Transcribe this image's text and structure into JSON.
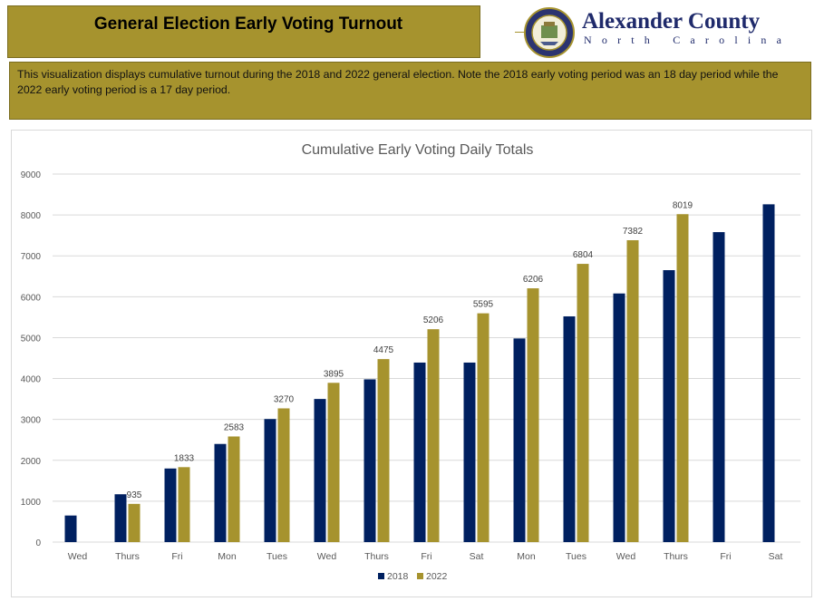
{
  "header": {
    "title": "General Election Early Voting Turnout",
    "county_name": "Alexander County",
    "county_subtitle": "North Carolina",
    "seal_icon": "county-seal-icon"
  },
  "description": "This visualization displays cumulative turnout during the 2018 and 2022 general election. Note the 2018 early voting period was an 18 day period while the 2022 early voting period is a 17 day period.",
  "colors": {
    "accent": "#a6932e",
    "series_2018": "#002060",
    "series_2022": "#a6932e",
    "brand_text": "#1f2a6b"
  },
  "chart_data": {
    "type": "bar",
    "title": "Cumulative Early Voting Daily Totals",
    "categories": [
      "Wed",
      "Thurs",
      "Fri",
      "Mon",
      "Tues",
      "Wed",
      "Thurs",
      "Fri",
      "Sat",
      "Mon",
      "Tues",
      "Wed",
      "Thurs",
      "Fri",
      "Sat"
    ],
    "series": [
      {
        "name": "2018",
        "values": [
          650,
          1170,
          1800,
          2400,
          3010,
          3500,
          3980,
          4390,
          4390,
          4980,
          5520,
          6080,
          6650,
          7580,
          8260
        ],
        "labels_shown": false
      },
      {
        "name": "2022",
        "values": [
          null,
          935,
          1833,
          2583,
          3270,
          3895,
          4475,
          5206,
          5595,
          6206,
          6804,
          7382,
          8019,
          null,
          null
        ],
        "labels_shown": true
      }
    ],
    "ylim": [
      0,
      9000
    ],
    "yticks": [
      0,
      1000,
      2000,
      3000,
      4000,
      5000,
      6000,
      7000,
      8000,
      9000
    ],
    "grid": true,
    "legend": "bottom-center"
  }
}
